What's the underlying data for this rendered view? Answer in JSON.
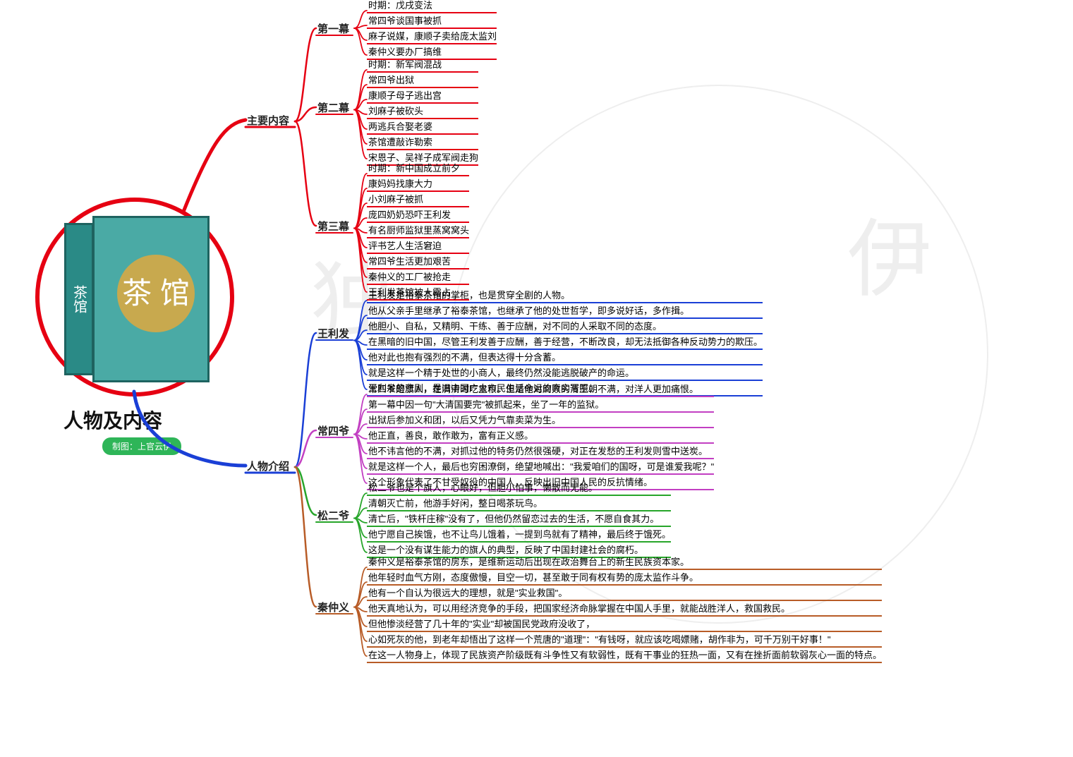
{
  "root_title": "人物及内容",
  "credit": "制图：上官云伊",
  "book_spine": "茶馆",
  "book_moon": "茶\n馆",
  "colors": {
    "red": "#e60012",
    "blue": "#1a3fd6",
    "magenta": "#c23fc2",
    "green": "#27a52a",
    "brown": "#b85c27"
  },
  "trunks": {
    "content": {
      "label": "主要内容",
      "color": "#e60012"
    },
    "people": {
      "label": "人物介绍",
      "color": "#1a3fd6"
    }
  },
  "acts": {
    "a1": {
      "label": "第一幕",
      "color": "#e60012",
      "items": [
        "时期：戊戌变法",
        "常四爷谈国事被抓",
        "麻子说媒，康顺子卖给庞太监刘",
        "秦仲义要办厂搞维"
      ]
    },
    "a2": {
      "label": "第二幕",
      "color": "#e60012",
      "items": [
        "时期：新军阀混战",
        "常四爷出狱",
        "康顺子母子逃出宫",
        "刘麻子被砍头",
        "两逃兵合娶老婆",
        "茶馆遭敲诈勒索",
        "宋恩子、吴祥子成军阀走狗"
      ]
    },
    "a3": {
      "label": "第三幕",
      "color": "#e60012",
      "items": [
        "时期：新中国成立前夕",
        "康妈妈找康大力",
        "小刘麻子被抓",
        "庞四奶奶恐吓王利发",
        "有名厨师监狱里蒸窝窝头",
        "评书艺人生活窘迫",
        "常四爷生活更加艰苦",
        "秦仲义的工厂被抢走",
        "王利发茶馆被人霸占"
      ]
    }
  },
  "people": {
    "wlf": {
      "label": "王利发",
      "color": "#1a3fd6",
      "items": [
        "王利发是裕泰茶馆的掌柜，也是贯穿全剧的人物。",
        "他从父亲手里继承了裕泰茶馆，也继承了他的处世哲学，即多说好话，多作揖。",
        "他胆小、自私，又精明、干练、善于应酬，对不同的人采取不同的态度。",
        "在黑暗的旧中国，尽管王利发善于应酬，善于经营，不断改良，却无法抵御各种反动势力的欺压。",
        "他对此也抱有强烈的不满，但表达得十分含蓄。",
        "就是这样一个精于处世的小商人，最终仍然没能逃脱破产的命运。",
        "王利发的悲剧，是旧中国广大市民生活命运的真实写照。"
      ]
    },
    "csy": {
      "label": "常四爷",
      "color": "#c23fc2",
      "items": [
        "常四爷是旗人，在满清时吃皇粮。但是他对腐败的清王朝不满，对洋人更加痛恨。",
        "第一幕中因一句\"大清国要完\"被抓起来，坐了一年的监狱。",
        "出狱后参加义和团，以后又凭力气靠卖菜为生。",
        "他正直，善良，敢作敢为，富有正义感。",
        "他不讳言他的不满，对抓过他的特务仍然很强硬，对正在发愁的王利发则雪中送炭。",
        "就是这样一个人，最后也穷困潦倒，绝望地喊出：\"我爱咱们的国呀，可是谁爱我呢？\"",
        "这个形象代表了不甘受奴役的中国人，反映出旧中国人民的反抗情绪。"
      ]
    },
    "sey": {
      "label": "松二爷",
      "color": "#27a52a",
      "items": [
        "松二爷也是个旗人，心眼好，但胆小怕事，懒散而无能。",
        "清朝灭亡前，他游手好闲，整日喝茶玩鸟。",
        "清亡后，\"铁杆庄稼\"没有了，但他仍然留恋过去的生活，不愿自食其力。",
        "他宁愿自己挨饿，也不让鸟儿饿着，一提到鸟就有了精神，最后终于饿死。",
        "这是一个没有谋生能力的旗人的典型，反映了中国封建社会的腐朽。"
      ]
    },
    "qzy": {
      "label": "秦仲义",
      "color": "#b85c27",
      "items": [
        "秦仲义是裕泰茶馆的房东，是维新运动后出现在政治舞台上的新生民族资本家。",
        "他年轻时血气方刚，态度傲慢，目空一切，甚至敢于同有权有势的庞太监作斗争。",
        "他有一个自认为很远大的理想，就是\"实业救国\"。",
        "他天真地认为，可以用经济竞争的手段，把国家经济命脉掌握在中国人手里，就能战胜洋人，救国救民。",
        "但他惨淡经营了几十年的\"实业\"却被国民党政府没收了，",
        "心如死灰的他，到老年却悟出了这样一个荒唐的\"道理\"：\"有钱呀，就应该吃喝嫖赌，胡作非为，可千万别干好事！\"",
        "在这一人物身上，体现了民族资产阶级既有斗争性又有软弱性，既有干事业的狂热一面，又有在挫折面前软弱灰心一面的特点。"
      ]
    }
  }
}
